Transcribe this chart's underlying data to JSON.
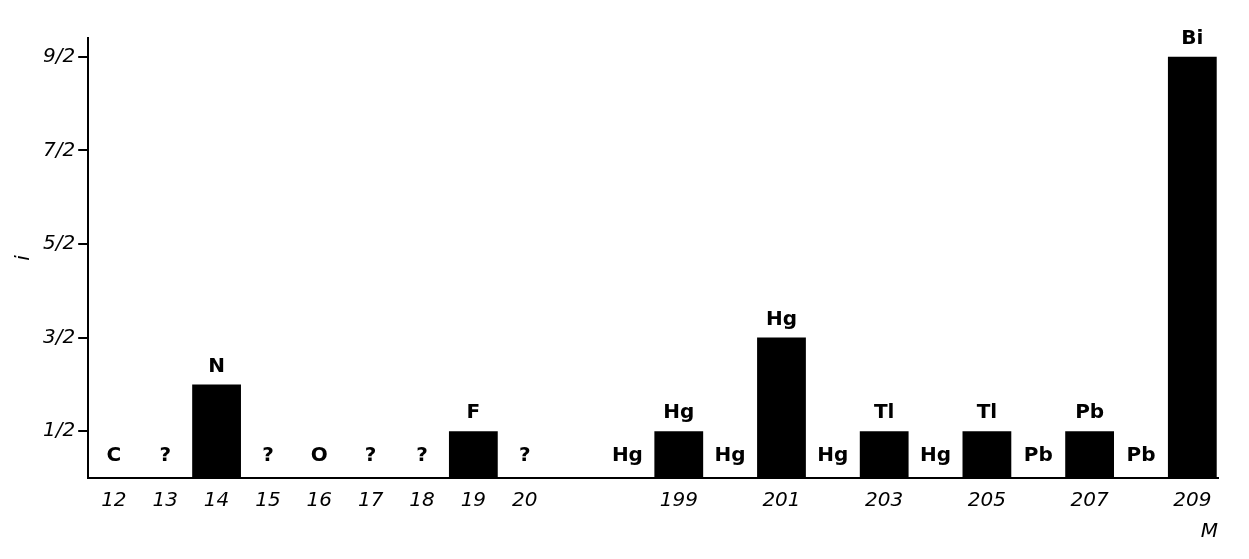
{
  "chart_data": {
    "type": "bar",
    "xlabel": "M",
    "ylabel": "i",
    "categories": [
      "12",
      "13",
      "14",
      "15",
      "16",
      "17",
      "18",
      "19",
      "20",
      null,
      null,
      "199",
      null,
      "201",
      null,
      "203",
      null,
      "205",
      null,
      "207",
      null,
      "209"
    ],
    "values": [
      0,
      null,
      1,
      null,
      0,
      null,
      null,
      0.5,
      null,
      null,
      0,
      0.5,
      0,
      1.5,
      0,
      0.5,
      0,
      0.5,
      0,
      0.5,
      0,
      4.5
    ],
    "value_labels": [
      "C",
      "?",
      "N",
      "?",
      "O",
      "?",
      "?",
      "F",
      "?",
      null,
      "Hg",
      "Hg",
      "Hg",
      "Hg",
      "Hg",
      "Tl",
      "Hg",
      "Tl",
      "Pb",
      "Pb",
      "Pb",
      "Bi"
    ],
    "color": "#000000",
    "ylim": [
      0,
      4.7
    ],
    "yticks": [
      {
        "value": 0.5,
        "label": "1/2"
      },
      {
        "value": 1.5,
        "label": "3/2"
      },
      {
        "value": 2.5,
        "label": "5/2"
      },
      {
        "value": 3.5,
        "label": "7/2"
      },
      {
        "value": 4.5,
        "label": "9/2"
      }
    ],
    "grid": false
  }
}
